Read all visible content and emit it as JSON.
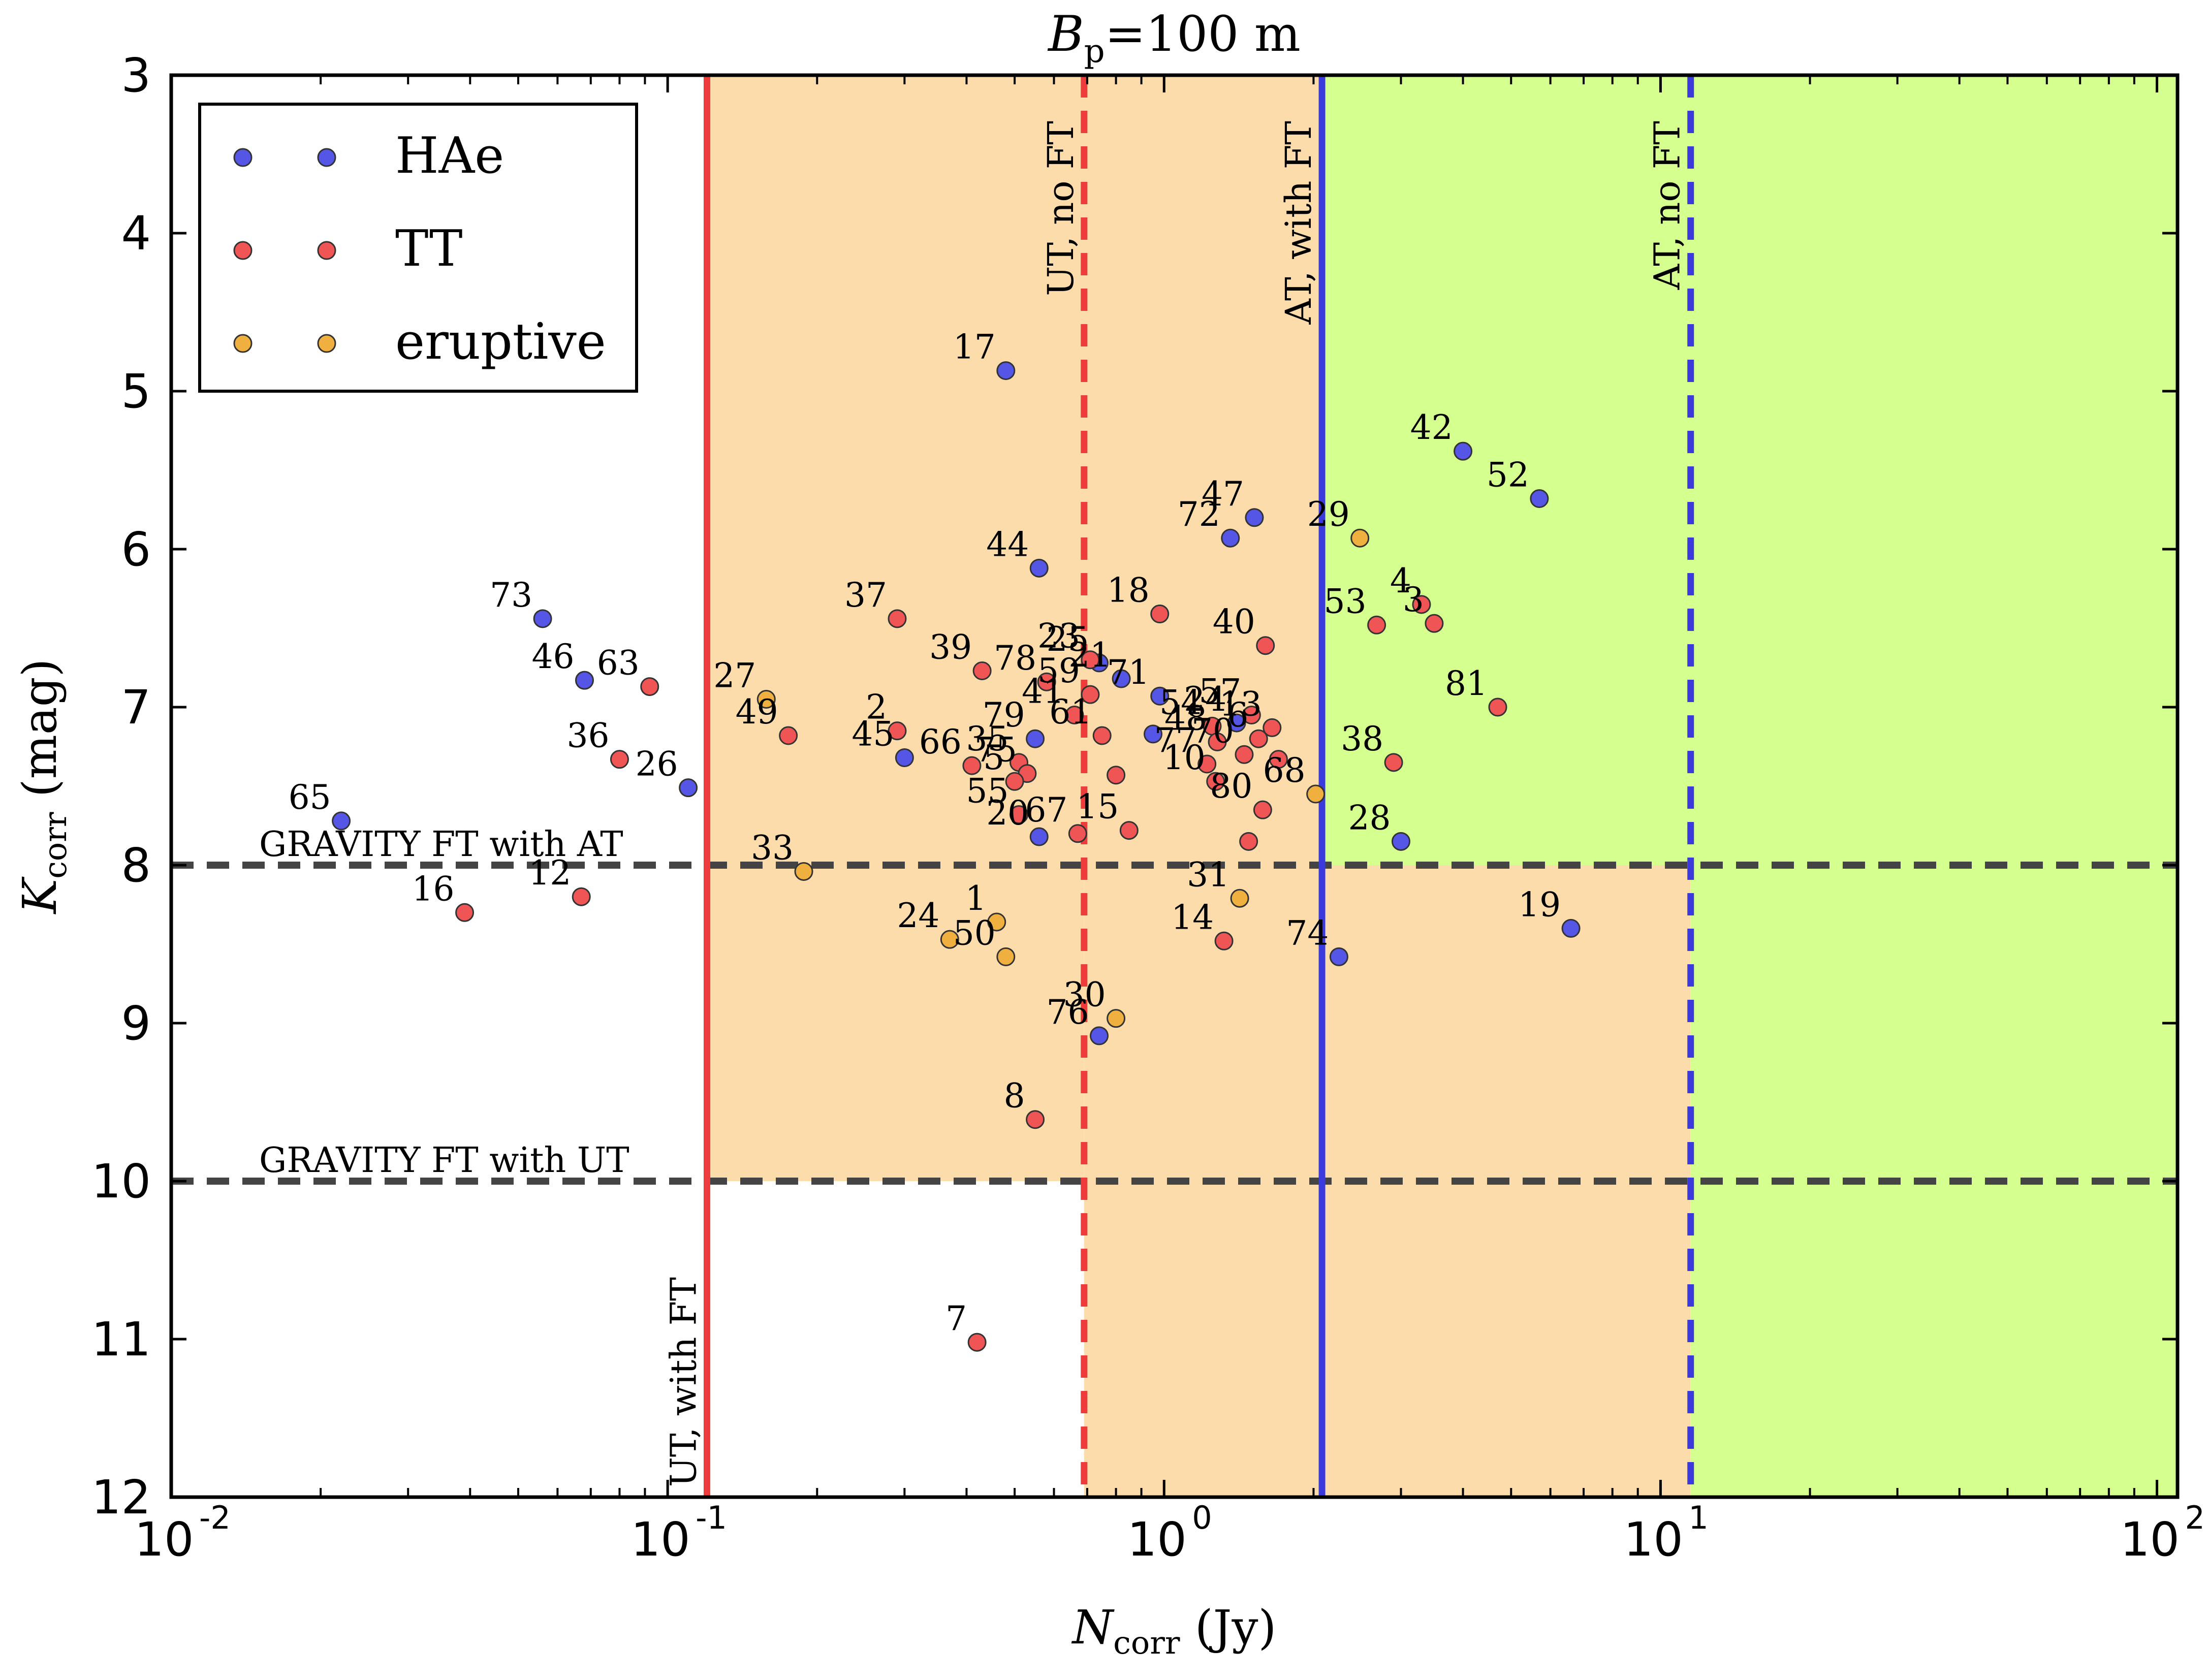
{
  "chart_data": {
    "type": "scatter",
    "title": "B_p = 100 m",
    "title_parts": {
      "main": "B",
      "sub": "p",
      "rest": "=100 m"
    },
    "xlabel": "N_corr (Jy)",
    "xlabel_parts": {
      "main": "N",
      "sub": "corr",
      "rest": " (Jy)"
    },
    "ylabel": "K_corr (mag)",
    "ylabel_parts": {
      "main": "K",
      "sub": "corr",
      "rest": " (mag)"
    },
    "x_scale": "log",
    "xlim": [
      0.01,
      110
    ],
    "ylim": [
      12,
      3
    ],
    "y_inverted": true,
    "x_ticks": [
      {
        "value": 0.01,
        "base": "10",
        "exp": "-2"
      },
      {
        "value": 0.1,
        "base": "10",
        "exp": "-1"
      },
      {
        "value": 1,
        "base": "10",
        "exp": "0"
      },
      {
        "value": 10,
        "base": "10",
        "exp": "1"
      },
      {
        "value": 100,
        "base": "10",
        "exp": "2"
      }
    ],
    "y_ticks": [
      3,
      4,
      5,
      6,
      7,
      8,
      9,
      10,
      11,
      12
    ],
    "legend": {
      "placement": "top-left",
      "entries": [
        {
          "label": "HAe",
          "color": "#5555e6"
        },
        {
          "label": "TT",
          "color": "#f05555"
        },
        {
          "label": "eruptive",
          "color": "#f0b040"
        }
      ]
    },
    "regions": [
      {
        "kind": "orange",
        "x_from": 0.12,
        "x_to": 11.5,
        "y_from": 3,
        "y_to": 8,
        "color": "#fddcac"
      },
      {
        "kind": "orange",
        "x_from": 0.12,
        "x_to": 0.69,
        "y_from": 8,
        "y_to": 10,
        "color": "#fddcac"
      },
      {
        "kind": "orange",
        "x_from": 0.69,
        "x_to": 11.5,
        "y_from": 8,
        "y_to": 12,
        "color": "#fddcac"
      },
      {
        "kind": "green",
        "x_from": 2.08,
        "x_to": 110,
        "y_from": 3,
        "y_to": 8,
        "color": "#d5ff8f"
      },
      {
        "kind": "green",
        "x_from": 11.5,
        "x_to": 110,
        "y_from": 8,
        "y_to": 12,
        "color": "#d5ff8f"
      }
    ],
    "vlines": [
      {
        "x": 0.12,
        "color": "#ee3b3b",
        "style": "solid",
        "label": "UT, with FT"
      },
      {
        "x": 0.69,
        "color": "#ee3b3b",
        "style": "dashed",
        "label": "UT, no FT"
      },
      {
        "x": 2.08,
        "color": "#3b3bdd",
        "style": "solid",
        "label": "AT, with FT"
      },
      {
        "x": 11.5,
        "color": "#3b3bdd",
        "style": "dashed",
        "label": "AT, no FT"
      }
    ],
    "hlines": [
      {
        "y": 8,
        "color": "#444444",
        "style": "dashed",
        "label": "GRAVITY FT with AT"
      },
      {
        "y": 10,
        "color": "#444444",
        "style": "dashed",
        "label": "GRAVITY FT with UT"
      }
    ],
    "series": [
      {
        "name": "HAe",
        "color": "#5555e6",
        "points": [
          {
            "id": "17",
            "x": 0.48,
            "y": 4.87
          },
          {
            "id": "42",
            "x": 4.0,
            "y": 5.38
          },
          {
            "id": "52",
            "x": 5.7,
            "y": 5.68
          },
          {
            "id": "47",
            "x": 1.52,
            "y": 5.8
          },
          {
            "id": "72",
            "x": 1.36,
            "y": 5.93
          },
          {
            "id": "44",
            "x": 0.56,
            "y": 6.12
          },
          {
            "id": "73",
            "x": 0.056,
            "y": 6.44
          },
          {
            "id": "25",
            "x": 0.74,
            "y": 6.72
          },
          {
            "id": "21",
            "x": 0.82,
            "y": 6.82
          },
          {
            "id": "46",
            "x": 0.068,
            "y": 6.83
          },
          {
            "id": "71",
            "x": 0.98,
            "y": 6.93
          },
          {
            "id": "79",
            "x": 0.55,
            "y": 7.2
          },
          {
            "id": "71b",
            "x": 0.95,
            "y": 7.17
          },
          {
            "id": "45",
            "x": 0.3,
            "y": 7.32
          },
          {
            "id": "24b",
            "x": 1.4,
            "y": 7.1
          },
          {
            "id": "26",
            "x": 0.11,
            "y": 7.51
          },
          {
            "id": "65",
            "x": 0.022,
            "y": 7.72
          },
          {
            "id": "20",
            "x": 0.56,
            "y": 7.82
          },
          {
            "id": "28",
            "x": 3.0,
            "y": 7.85
          },
          {
            "id": "74",
            "x": 2.25,
            "y": 8.58
          },
          {
            "id": "19",
            "x": 6.6,
            "y": 8.4
          },
          {
            "id": "76",
            "x": 0.74,
            "y": 9.08
          }
        ]
      },
      {
        "name": "TT",
        "color": "#f05555",
        "points": [
          {
            "id": "4",
            "x": 3.3,
            "y": 6.35
          },
          {
            "id": "3",
            "x": 3.5,
            "y": 6.47
          },
          {
            "id": "18",
            "x": 0.98,
            "y": 6.41
          },
          {
            "id": "37",
            "x": 0.29,
            "y": 6.44
          },
          {
            "id": "53",
            "x": 2.68,
            "y": 6.48
          },
          {
            "id": "40",
            "x": 1.6,
            "y": 6.61
          },
          {
            "id": "39",
            "x": 0.43,
            "y": 6.77
          },
          {
            "id": "23",
            "x": 0.71,
            "y": 6.7
          },
          {
            "id": "78",
            "x": 0.58,
            "y": 6.84
          },
          {
            "id": "63",
            "x": 0.092,
            "y": 6.87
          },
          {
            "id": "59",
            "x": 0.71,
            "y": 6.92
          },
          {
            "id": "81",
            "x": 4.7,
            "y": 7.0
          },
          {
            "id": "41",
            "x": 0.66,
            "y": 7.05
          },
          {
            "id": "2",
            "x": 0.29,
            "y": 7.15
          },
          {
            "id": "57",
            "x": 1.5,
            "y": 7.05
          },
          {
            "id": "13",
            "x": 1.65,
            "y": 7.13
          },
          {
            "id": "54",
            "x": 1.25,
            "y": 7.12
          },
          {
            "id": "49",
            "x": 0.175,
            "y": 7.18
          },
          {
            "id": "6",
            "x": 1.55,
            "y": 7.2
          },
          {
            "id": "61",
            "x": 0.75,
            "y": 7.18
          },
          {
            "id": "48",
            "x": 1.28,
            "y": 7.22
          },
          {
            "id": "70",
            "x": 1.45,
            "y": 7.3
          },
          {
            "id": "66",
            "x": 0.41,
            "y": 7.37
          },
          {
            "id": "36",
            "x": 0.08,
            "y": 7.33
          },
          {
            "id": "38",
            "x": 2.9,
            "y": 7.35
          },
          {
            "id": "11",
            "x": 1.7,
            "y": 7.33
          },
          {
            "id": "77",
            "x": 1.22,
            "y": 7.36
          },
          {
            "id": "35",
            "x": 0.51,
            "y": 7.35
          },
          {
            "id": "75",
            "x": 0.53,
            "y": 7.42
          },
          {
            "id": "61b",
            "x": 0.8,
            "y": 7.43
          },
          {
            "id": "5",
            "x": 0.5,
            "y": 7.47
          },
          {
            "id": "10",
            "x": 1.27,
            "y": 7.47
          },
          {
            "id": "55",
            "x": 0.51,
            "y": 7.68
          },
          {
            "id": "80",
            "x": 1.58,
            "y": 7.65
          },
          {
            "id": "67",
            "x": 0.67,
            "y": 7.8
          },
          {
            "id": "15",
            "x": 0.85,
            "y": 7.78
          },
          {
            "id": "80b",
            "x": 1.48,
            "y": 7.85
          },
          {
            "id": "12",
            "x": 0.067,
            "y": 8.2
          },
          {
            "id": "16",
            "x": 0.039,
            "y": 8.3
          },
          {
            "id": "14",
            "x": 1.32,
            "y": 8.48
          },
          {
            "id": "8",
            "x": 0.55,
            "y": 9.61
          },
          {
            "id": "7",
            "x": 0.42,
            "y": 11.02
          }
        ]
      },
      {
        "name": "eruptive",
        "color": "#f0b040",
        "points": [
          {
            "id": "29",
            "x": 2.48,
            "y": 5.93
          },
          {
            "id": "27",
            "x": 0.158,
            "y": 6.95
          },
          {
            "id": "68",
            "x": 2.02,
            "y": 7.55
          },
          {
            "id": "33",
            "x": 0.188,
            "y": 8.04
          },
          {
            "id": "31",
            "x": 1.42,
            "y": 8.21
          },
          {
            "id": "1",
            "x": 0.46,
            "y": 8.36
          },
          {
            "id": "24",
            "x": 0.37,
            "y": 8.47
          },
          {
            "id": "50",
            "x": 0.48,
            "y": 8.58
          },
          {
            "id": "30",
            "x": 0.8,
            "y": 8.97
          }
        ]
      }
    ],
    "point_labels": [
      {
        "text": "17",
        "x": 0.48,
        "y": 4.87
      },
      {
        "text": "42",
        "x": 4.0,
        "y": 5.38
      },
      {
        "text": "52",
        "x": 5.7,
        "y": 5.68
      },
      {
        "text": "47",
        "x": 1.52,
        "y": 5.8
      },
      {
        "text": "72",
        "x": 1.36,
        "y": 5.93
      },
      {
        "text": "29",
        "x": 2.48,
        "y": 5.93
      },
      {
        "text": "44",
        "x": 0.56,
        "y": 6.12
      },
      {
        "text": "4",
        "x": 3.3,
        "y": 6.35
      },
      {
        "text": "3",
        "x": 3.5,
        "y": 6.47
      },
      {
        "text": "18",
        "x": 0.98,
        "y": 6.41
      },
      {
        "text": "37",
        "x": 0.29,
        "y": 6.44
      },
      {
        "text": "73",
        "x": 0.056,
        "y": 6.44
      },
      {
        "text": "53",
        "x": 2.68,
        "y": 6.48
      },
      {
        "text": "40",
        "x": 1.6,
        "y": 6.61
      },
      {
        "text": "23",
        "x": 0.71,
        "y": 6.7
      },
      {
        "text": "25",
        "x": 0.74,
        "y": 6.72
      },
      {
        "text": "39",
        "x": 0.43,
        "y": 6.77
      },
      {
        "text": "46",
        "x": 0.068,
        "y": 6.83
      },
      {
        "text": "63",
        "x": 0.092,
        "y": 6.87
      },
      {
        "text": "21",
        "x": 0.82,
        "y": 6.82
      },
      {
        "text": "78",
        "x": 0.58,
        "y": 6.84
      },
      {
        "text": "59",
        "x": 0.71,
        "y": 6.92
      },
      {
        "text": "27",
        "x": 0.158,
        "y": 6.95
      },
      {
        "text": "81",
        "x": 4.7,
        "y": 7.0
      },
      {
        "text": "2",
        "x": 0.29,
        "y": 7.15
      },
      {
        "text": "41",
        "x": 0.66,
        "y": 7.05
      },
      {
        "text": "71",
        "x": 0.98,
        "y": 6.93
      },
      {
        "text": "54",
        "x": 1.25,
        "y": 7.12
      },
      {
        "text": "57",
        "x": 1.5,
        "y": 7.05
      },
      {
        "text": "24",
        "x": 1.4,
        "y": 7.1
      },
      {
        "text": "13",
        "x": 1.65,
        "y": 7.13
      },
      {
        "text": "49",
        "x": 0.175,
        "y": 7.18
      },
      {
        "text": "79",
        "x": 0.55,
        "y": 7.2
      },
      {
        "text": "45",
        "x": 0.3,
        "y": 7.32
      },
      {
        "text": "66",
        "x": 0.41,
        "y": 7.37
      },
      {
        "text": "48",
        "x": 1.28,
        "y": 7.22
      },
      {
        "text": "70",
        "x": 1.45,
        "y": 7.3
      },
      {
        "text": "6",
        "x": 1.55,
        "y": 7.2
      },
      {
        "text": "36",
        "x": 0.08,
        "y": 7.33
      },
      {
        "text": "38",
        "x": 2.9,
        "y": 7.35
      },
      {
        "text": "35",
        "x": 0.51,
        "y": 7.35
      },
      {
        "text": "75",
        "x": 0.53,
        "y": 7.42
      },
      {
        "text": "61",
        "x": 0.75,
        "y": 7.18
      },
      {
        "text": "77",
        "x": 1.22,
        "y": 7.36
      },
      {
        "text": "26",
        "x": 0.11,
        "y": 7.51
      },
      {
        "text": "5",
        "x": 0.5,
        "y": 7.47
      },
      {
        "text": "10",
        "x": 1.27,
        "y": 7.47
      },
      {
        "text": "68",
        "x": 2.02,
        "y": 7.55
      },
      {
        "text": "55",
        "x": 0.51,
        "y": 7.68
      },
      {
        "text": "65",
        "x": 0.022,
        "y": 7.72
      },
      {
        "text": "80",
        "x": 1.58,
        "y": 7.65
      },
      {
        "text": "20",
        "x": 0.56,
        "y": 7.82
      },
      {
        "text": "67",
        "x": 0.67,
        "y": 7.8
      },
      {
        "text": "15",
        "x": 0.85,
        "y": 7.78
      },
      {
        "text": "28",
        "x": 3.0,
        "y": 7.85
      },
      {
        "text": "33",
        "x": 0.188,
        "y": 8.04
      },
      {
        "text": "16",
        "x": 0.039,
        "y": 8.3
      },
      {
        "text": "12",
        "x": 0.067,
        "y": 8.2
      },
      {
        "text": "31",
        "x": 1.42,
        "y": 8.21
      },
      {
        "text": "1",
        "x": 0.46,
        "y": 8.36
      },
      {
        "text": "24",
        "x": 0.37,
        "y": 8.47
      },
      {
        "text": "50",
        "x": 0.48,
        "y": 8.58
      },
      {
        "text": "14",
        "x": 1.32,
        "y": 8.48
      },
      {
        "text": "74",
        "x": 2.25,
        "y": 8.58
      },
      {
        "text": "19",
        "x": 6.6,
        "y": 8.4
      },
      {
        "text": "30",
        "x": 0.8,
        "y": 8.97
      },
      {
        "text": "76",
        "x": 0.74,
        "y": 9.08
      },
      {
        "text": "8",
        "x": 0.55,
        "y": 9.61
      },
      {
        "text": "7",
        "x": 0.42,
        "y": 11.02
      }
    ]
  }
}
